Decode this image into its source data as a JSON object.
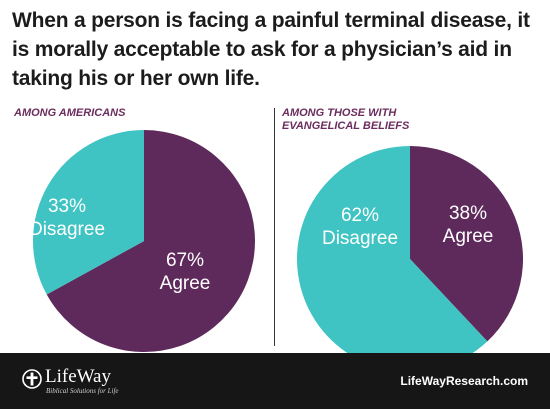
{
  "title": "When a person is facing a painful terminal disease, it is morally acceptable to ask for a physician’s aid in taking his or her own life.",
  "colors": {
    "agree": "#5e2a5c",
    "disagree": "#3fc3c3",
    "footer": "#161616",
    "subtitle": "#6b2d5e"
  },
  "chart_data": [
    {
      "type": "pie",
      "subtitle": "AMONG AMERICANS",
      "slices": [
        {
          "label": "Agree",
          "value": 67,
          "display": "67%",
          "color": "#5e2a5c"
        },
        {
          "label": "Disagree",
          "value": 33,
          "display": "33%",
          "color": "#3fc3c3"
        }
      ]
    },
    {
      "type": "pie",
      "subtitle": "AMONG THOSE WITH EVANGELICAL BELIEFS",
      "slices": [
        {
          "label": "Agree",
          "value": 38,
          "display": "38%",
          "color": "#5e2a5c"
        },
        {
          "label": "Disagree",
          "value": 62,
          "display": "62%",
          "color": "#3fc3c3"
        }
      ]
    }
  ],
  "footer": {
    "logo_name": "LifeWay",
    "logo_tagline": "Biblical Solutions for Life",
    "logo_icon": "cross-logo-icon",
    "website": "LifeWayResearch.com"
  }
}
